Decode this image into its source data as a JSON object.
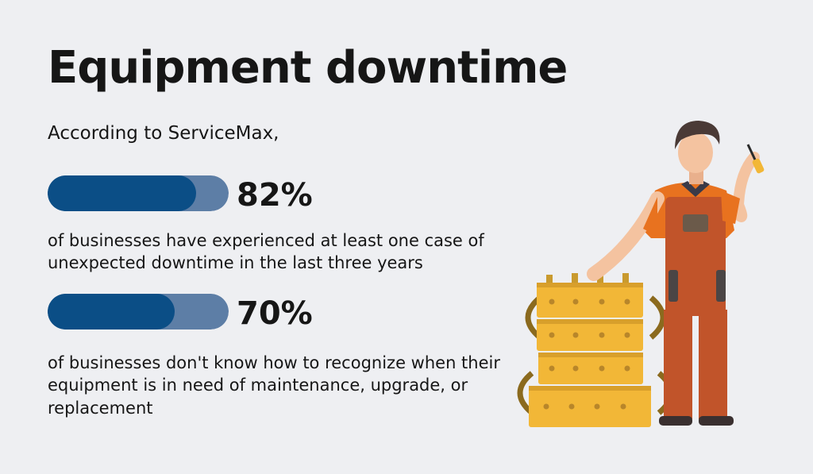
{
  "title": "Equipment downtime",
  "intro": "According to ServiceMax,",
  "colors": {
    "bar_fill": "#0b4e86",
    "bar_track": "#5d7ea6",
    "background": "#eeeff2"
  },
  "stats": [
    {
      "value": "82%",
      "fraction": 0.82,
      "text": "of businesses have experienced at least one case of unexpected downtime in the last three years"
    },
    {
      "value": "70%",
      "fraction": 0.7,
      "text": "of businesses don't know how to recognize when their equipment is in need of maintenance, upgrade, or replacement"
    }
  ],
  "illustration": {
    "icon": "mechanic-with-screwdriver-and-server-stack"
  }
}
